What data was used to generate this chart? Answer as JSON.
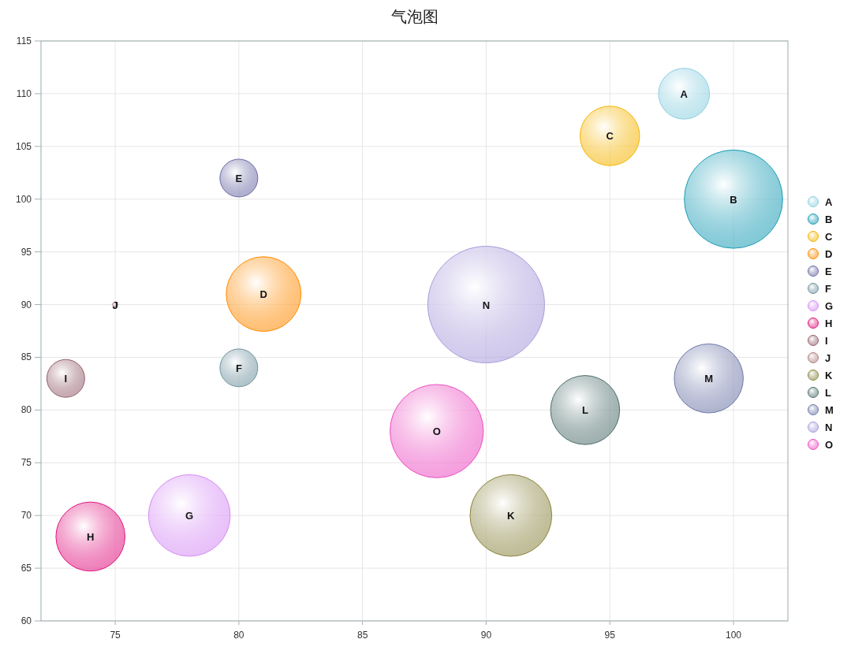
{
  "chart_data": {
    "type": "bubble",
    "title": "气泡图",
    "xlim": [
      72,
      102.2
    ],
    "ylim": [
      60,
      115
    ],
    "xticks": [
      75,
      80,
      85,
      90,
      95,
      100
    ],
    "yticks": [
      60,
      65,
      70,
      75,
      80,
      85,
      90,
      95,
      100,
      105,
      110,
      115
    ],
    "grid": true,
    "legend": "right",
    "series": [
      {
        "name": "A",
        "color": "#8ccfe0",
        "x": [
          98
        ],
        "values": [
          110
        ],
        "sizes": [
          0.19
        ]
      },
      {
        "name": "B",
        "color": "#1a9cb5",
        "x": [
          100
        ],
        "values": [
          100
        ],
        "sizes": [
          0.71
        ]
      },
      {
        "name": "C",
        "color": "#f5b400",
        "x": [
          95
        ],
        "values": [
          106
        ],
        "sizes": [
          0.26
        ]
      },
      {
        "name": "D",
        "color": "#ff8a00",
        "x": [
          81
        ],
        "values": [
          91
        ],
        "sizes": [
          0.41
        ]
      },
      {
        "name": "E",
        "color": "#6b6aa6",
        "x": [
          80
        ],
        "values": [
          102
        ],
        "sizes": [
          0.105
        ]
      },
      {
        "name": "F",
        "color": "#6f929e",
        "x": [
          80
        ],
        "values": [
          84
        ],
        "sizes": [
          0.105
        ]
      },
      {
        "name": "G",
        "color": "#d58cf5",
        "x": [
          78
        ],
        "values": [
          70
        ],
        "sizes": [
          0.49
        ]
      },
      {
        "name": "H",
        "color": "#e0157f",
        "x": [
          74
        ],
        "values": [
          68
        ],
        "sizes": [
          0.35
        ]
      },
      {
        "name": "I",
        "color": "#93606c",
        "x": [
          73
        ],
        "values": [
          83
        ],
        "sizes": [
          0.105
        ]
      },
      {
        "name": "J",
        "color": "#b08080",
        "x": [
          75
        ],
        "values": [
          90
        ],
        "sizes": [
          0.002
        ]
      },
      {
        "name": "K",
        "color": "#8a8540",
        "x": [
          91
        ],
        "values": [
          70
        ],
        "sizes": [
          0.49
        ]
      },
      {
        "name": "L",
        "color": "#4d6e6c",
        "x": [
          94
        ],
        "values": [
          80
        ],
        "sizes": [
          0.35
        ]
      },
      {
        "name": "M",
        "color": "#6f78a8",
        "x": [
          99
        ],
        "values": [
          83
        ],
        "sizes": [
          0.35
        ]
      },
      {
        "name": "N",
        "color": "#a99bdb",
        "x": [
          90
        ],
        "values": [
          90
        ],
        "sizes": [
          1
        ]
      },
      {
        "name": "O",
        "color": "#ec4fc2",
        "x": [
          88
        ],
        "values": [
          78
        ],
        "sizes": [
          0.64
        ]
      }
    ]
  }
}
